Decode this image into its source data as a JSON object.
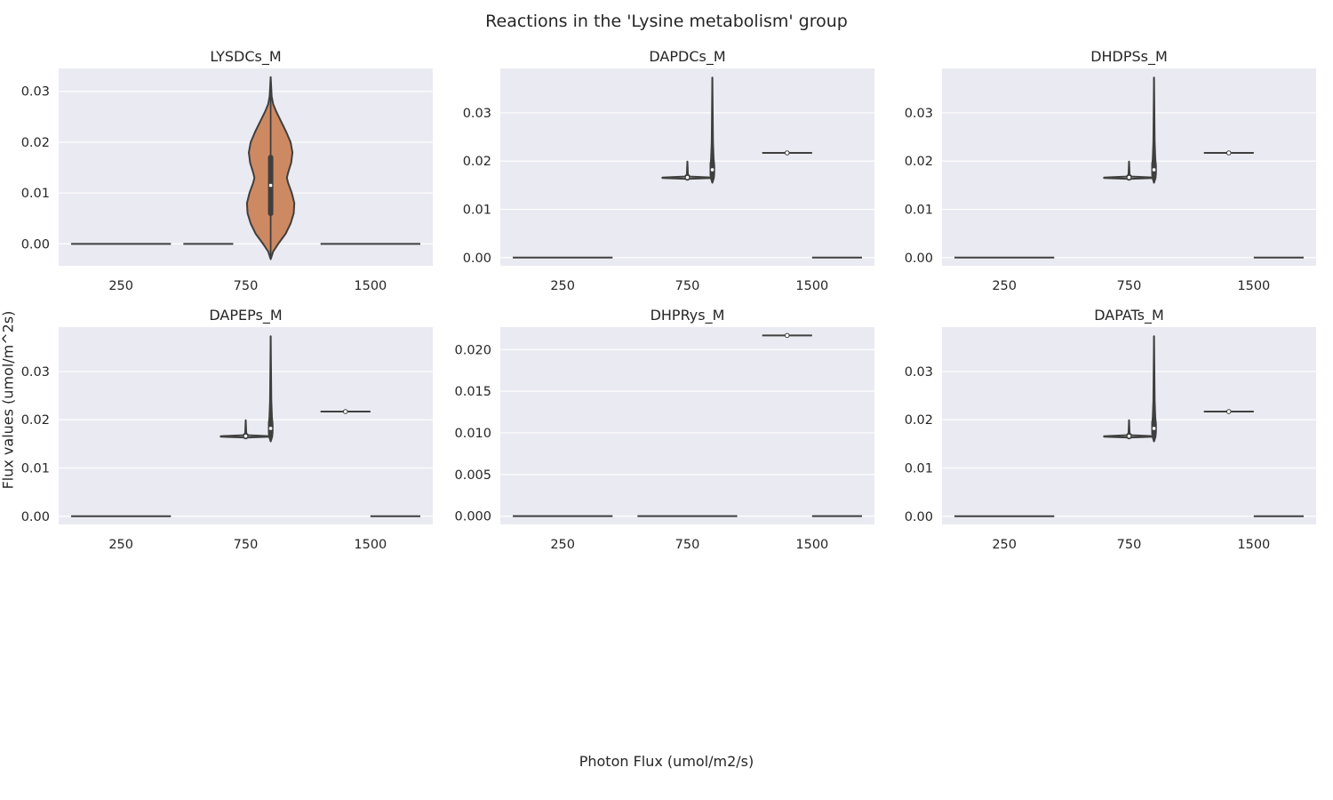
{
  "figure": {
    "title": "Reactions in the 'Lysine metabolism' group",
    "xlabel": "Photon Flux (umol/m2/s)",
    "ylabel": "Flux values (umol/m^2s)"
  },
  "colors": {
    "panel_bg": "#eaeaf2",
    "grid": "#ffffff",
    "stroke": "#3f3f3f",
    "orange_fill": "#cd8a62"
  },
  "chart_data": [
    {
      "type": "violin",
      "title": "LYSDCs_M",
      "categories": [
        "250",
        "750",
        "1500"
      ],
      "ylim": [
        -0.0043,
        0.0345
      ],
      "yticks": [
        0.0,
        0.01,
        0.02,
        0.03
      ],
      "ytick_labels": [
        "0.00",
        "0.01",
        "0.02",
        "0.03"
      ],
      "grid": true,
      "violins": [
        {
          "x": 0.0,
          "half_width": 0.4,
          "flat": true,
          "y": 0.0
        },
        {
          "x": 0.7,
          "half_width": 0.2,
          "flat": true,
          "y": 0.0
        },
        {
          "x": 1.2,
          "half_width": 0.19,
          "flat": false,
          "fill": "orange",
          "min": -0.003,
          "max": 0.0328,
          "q1": 0.006,
          "q3": 0.017,
          "median": 0.0115,
          "profile": [
            [
              -0.003,
              0.0
            ],
            [
              -0.0015,
              0.02
            ],
            [
              0.0,
              0.06
            ],
            [
              0.002,
              0.12
            ],
            [
              0.004,
              0.16
            ],
            [
              0.006,
              0.185
            ],
            [
              0.008,
              0.19
            ],
            [
              0.01,
              0.17
            ],
            [
              0.012,
              0.14
            ],
            [
              0.013,
              0.13
            ],
            [
              0.014,
              0.14
            ],
            [
              0.016,
              0.165
            ],
            [
              0.018,
              0.175
            ],
            [
              0.02,
              0.16
            ],
            [
              0.022,
              0.125
            ],
            [
              0.024,
              0.085
            ],
            [
              0.026,
              0.045
            ],
            [
              0.0275,
              0.02
            ],
            [
              0.029,
              0.008
            ],
            [
              0.0328,
              0.0
            ]
          ]
        },
        {
          "x": 2.0,
          "half_width": 0.4,
          "flat": true,
          "y": 0.0
        }
      ]
    },
    {
      "type": "violin",
      "title": "DAPDCs_M",
      "categories": [
        "250",
        "750",
        "1500"
      ],
      "ylim": [
        -0.0017,
        0.0392
      ],
      "yticks": [
        0.0,
        0.01,
        0.02,
        0.03
      ],
      "ytick_labels": [
        "0.00",
        "0.01",
        "0.02",
        "0.03"
      ],
      "grid": true,
      "violins": [
        {
          "x": 0.0,
          "half_width": 0.4,
          "flat": true,
          "y": 0.0
        },
        {
          "x": 1.0,
          "half_width": 0.2,
          "flat": false,
          "fill": "none",
          "min": 0.0163,
          "max": 0.0199,
          "median": 0.0166,
          "q1": 0.0165,
          "q3": 0.0167,
          "profile": [
            [
              0.0163,
              0.0
            ],
            [
              0.0164,
              0.1
            ],
            [
              0.0165,
              0.2
            ],
            [
              0.0166,
              0.2
            ],
            [
              0.0167,
              0.1
            ],
            [
              0.0168,
              0.02
            ],
            [
              0.0172,
              0.004
            ],
            [
              0.0199,
              0.0
            ]
          ]
        },
        {
          "x": 1.2,
          "half_width": 0.015,
          "flat": false,
          "fill": "none",
          "min": 0.0155,
          "max": 0.0373,
          "median": 0.0182,
          "q1": 0.0172,
          "q3": 0.0195,
          "profile": [
            [
              0.0155,
              0.0
            ],
            [
              0.0165,
              0.012
            ],
            [
              0.0175,
              0.015
            ],
            [
              0.019,
              0.015
            ],
            [
              0.0205,
              0.01
            ],
            [
              0.024,
              0.005
            ],
            [
              0.0373,
              0.0
            ]
          ]
        },
        {
          "x": 1.8,
          "half_width": 0.2,
          "flat": true,
          "y": 0.0217,
          "median": 0.0217
        },
        {
          "x": 2.2,
          "half_width": 0.2,
          "flat": true,
          "y": 0.0
        }
      ]
    },
    {
      "type": "violin",
      "title": "DHDPSs_M",
      "categories": [
        "250",
        "750",
        "1500"
      ],
      "ylim": [
        -0.0017,
        0.0392
      ],
      "yticks": [
        0.0,
        0.01,
        0.02,
        0.03
      ],
      "ytick_labels": [
        "0.00",
        "0.01",
        "0.02",
        "0.03"
      ],
      "grid": true,
      "violins": [
        {
          "x": 0.0,
          "half_width": 0.4,
          "flat": true,
          "y": 0.0
        },
        {
          "x": 1.0,
          "half_width": 0.2,
          "flat": false,
          "fill": "none",
          "min": 0.0163,
          "max": 0.0199,
          "median": 0.0166,
          "q1": 0.0165,
          "q3": 0.0167,
          "profile": [
            [
              0.0163,
              0.0
            ],
            [
              0.0164,
              0.1
            ],
            [
              0.0165,
              0.2
            ],
            [
              0.0166,
              0.2
            ],
            [
              0.0167,
              0.1
            ],
            [
              0.0168,
              0.02
            ],
            [
              0.0172,
              0.004
            ],
            [
              0.0199,
              0.0
            ]
          ]
        },
        {
          "x": 1.2,
          "half_width": 0.015,
          "flat": false,
          "fill": "none",
          "min": 0.0155,
          "max": 0.0373,
          "median": 0.0182,
          "q1": 0.0172,
          "q3": 0.0195,
          "profile": [
            [
              0.0155,
              0.0
            ],
            [
              0.0165,
              0.012
            ],
            [
              0.0175,
              0.015
            ],
            [
              0.019,
              0.015
            ],
            [
              0.0205,
              0.01
            ],
            [
              0.024,
              0.005
            ],
            [
              0.0373,
              0.0
            ]
          ]
        },
        {
          "x": 1.8,
          "half_width": 0.2,
          "flat": true,
          "y": 0.0217,
          "median": 0.0217
        },
        {
          "x": 2.2,
          "half_width": 0.2,
          "flat": true,
          "y": 0.0
        }
      ]
    },
    {
      "type": "violin",
      "title": "DAPEPs_M",
      "categories": [
        "250",
        "750",
        "1500"
      ],
      "ylim": [
        -0.0017,
        0.0392
      ],
      "yticks": [
        0.0,
        0.01,
        0.02,
        0.03
      ],
      "ytick_labels": [
        "0.00",
        "0.01",
        "0.02",
        "0.03"
      ],
      "grid": true,
      "violins": [
        {
          "x": 0.0,
          "half_width": 0.4,
          "flat": true,
          "y": 0.0
        },
        {
          "x": 1.0,
          "half_width": 0.2,
          "flat": false,
          "fill": "none",
          "min": 0.0163,
          "max": 0.0199,
          "median": 0.0166,
          "q1": 0.0165,
          "q3": 0.0167,
          "profile": [
            [
              0.0163,
              0.0
            ],
            [
              0.0164,
              0.1
            ],
            [
              0.0165,
              0.2
            ],
            [
              0.0166,
              0.2
            ],
            [
              0.0167,
              0.1
            ],
            [
              0.0168,
              0.02
            ],
            [
              0.0172,
              0.004
            ],
            [
              0.0199,
              0.0
            ]
          ]
        },
        {
          "x": 1.2,
          "half_width": 0.015,
          "flat": false,
          "fill": "none",
          "min": 0.0155,
          "max": 0.0373,
          "median": 0.0182,
          "q1": 0.0172,
          "q3": 0.0195,
          "profile": [
            [
              0.0155,
              0.0
            ],
            [
              0.0165,
              0.012
            ],
            [
              0.0175,
              0.015
            ],
            [
              0.019,
              0.015
            ],
            [
              0.0205,
              0.01
            ],
            [
              0.024,
              0.005
            ],
            [
              0.0373,
              0.0
            ]
          ]
        },
        {
          "x": 1.8,
          "half_width": 0.2,
          "flat": true,
          "y": 0.0217,
          "median": 0.0217
        },
        {
          "x": 2.2,
          "half_width": 0.2,
          "flat": true,
          "y": 0.0
        }
      ]
    },
    {
      "type": "violin",
      "title": "DHPRys_M",
      "categories": [
        "250",
        "750",
        "1500"
      ],
      "ylim": [
        -0.001,
        0.0227
      ],
      "yticks": [
        0.0,
        0.005,
        0.01,
        0.015,
        0.02
      ],
      "ytick_labels": [
        "0.000",
        "0.005",
        "0.010",
        "0.015",
        "0.020"
      ],
      "grid": true,
      "violins": [
        {
          "x": 0.0,
          "half_width": 0.4,
          "flat": true,
          "y": 0.0
        },
        {
          "x": 1.0,
          "half_width": 0.4,
          "flat": true,
          "y": 0.0
        },
        {
          "x": 1.8,
          "half_width": 0.2,
          "flat": true,
          "y": 0.0217,
          "median": 0.0217
        },
        {
          "x": 2.2,
          "half_width": 0.2,
          "flat": true,
          "y": 0.0
        }
      ]
    },
    {
      "type": "violin",
      "title": "DAPATs_M",
      "categories": [
        "250",
        "750",
        "1500"
      ],
      "ylim": [
        -0.0017,
        0.0392
      ],
      "yticks": [
        0.0,
        0.01,
        0.02,
        0.03
      ],
      "ytick_labels": [
        "0.00",
        "0.01",
        "0.02",
        "0.03"
      ],
      "grid": true,
      "violins": [
        {
          "x": 0.0,
          "half_width": 0.4,
          "flat": true,
          "y": 0.0
        },
        {
          "x": 1.0,
          "half_width": 0.2,
          "flat": false,
          "fill": "none",
          "min": 0.0163,
          "max": 0.0199,
          "median": 0.0166,
          "q1": 0.0165,
          "q3": 0.0167,
          "profile": [
            [
              0.0163,
              0.0
            ],
            [
              0.0164,
              0.1
            ],
            [
              0.0165,
              0.2
            ],
            [
              0.0166,
              0.2
            ],
            [
              0.0167,
              0.1
            ],
            [
              0.0168,
              0.02
            ],
            [
              0.0172,
              0.004
            ],
            [
              0.0199,
              0.0
            ]
          ]
        },
        {
          "x": 1.2,
          "half_width": 0.015,
          "flat": false,
          "fill": "none",
          "min": 0.0155,
          "max": 0.0373,
          "median": 0.0182,
          "q1": 0.0172,
          "q3": 0.0195,
          "profile": [
            [
              0.0155,
              0.0
            ],
            [
              0.0165,
              0.012
            ],
            [
              0.0175,
              0.015
            ],
            [
              0.019,
              0.015
            ],
            [
              0.0205,
              0.01
            ],
            [
              0.024,
              0.005
            ],
            [
              0.0373,
              0.0
            ]
          ]
        },
        {
          "x": 1.8,
          "half_width": 0.2,
          "flat": true,
          "y": 0.0217,
          "median": 0.0217
        },
        {
          "x": 2.2,
          "half_width": 0.2,
          "flat": true,
          "y": 0.0
        }
      ]
    }
  ]
}
